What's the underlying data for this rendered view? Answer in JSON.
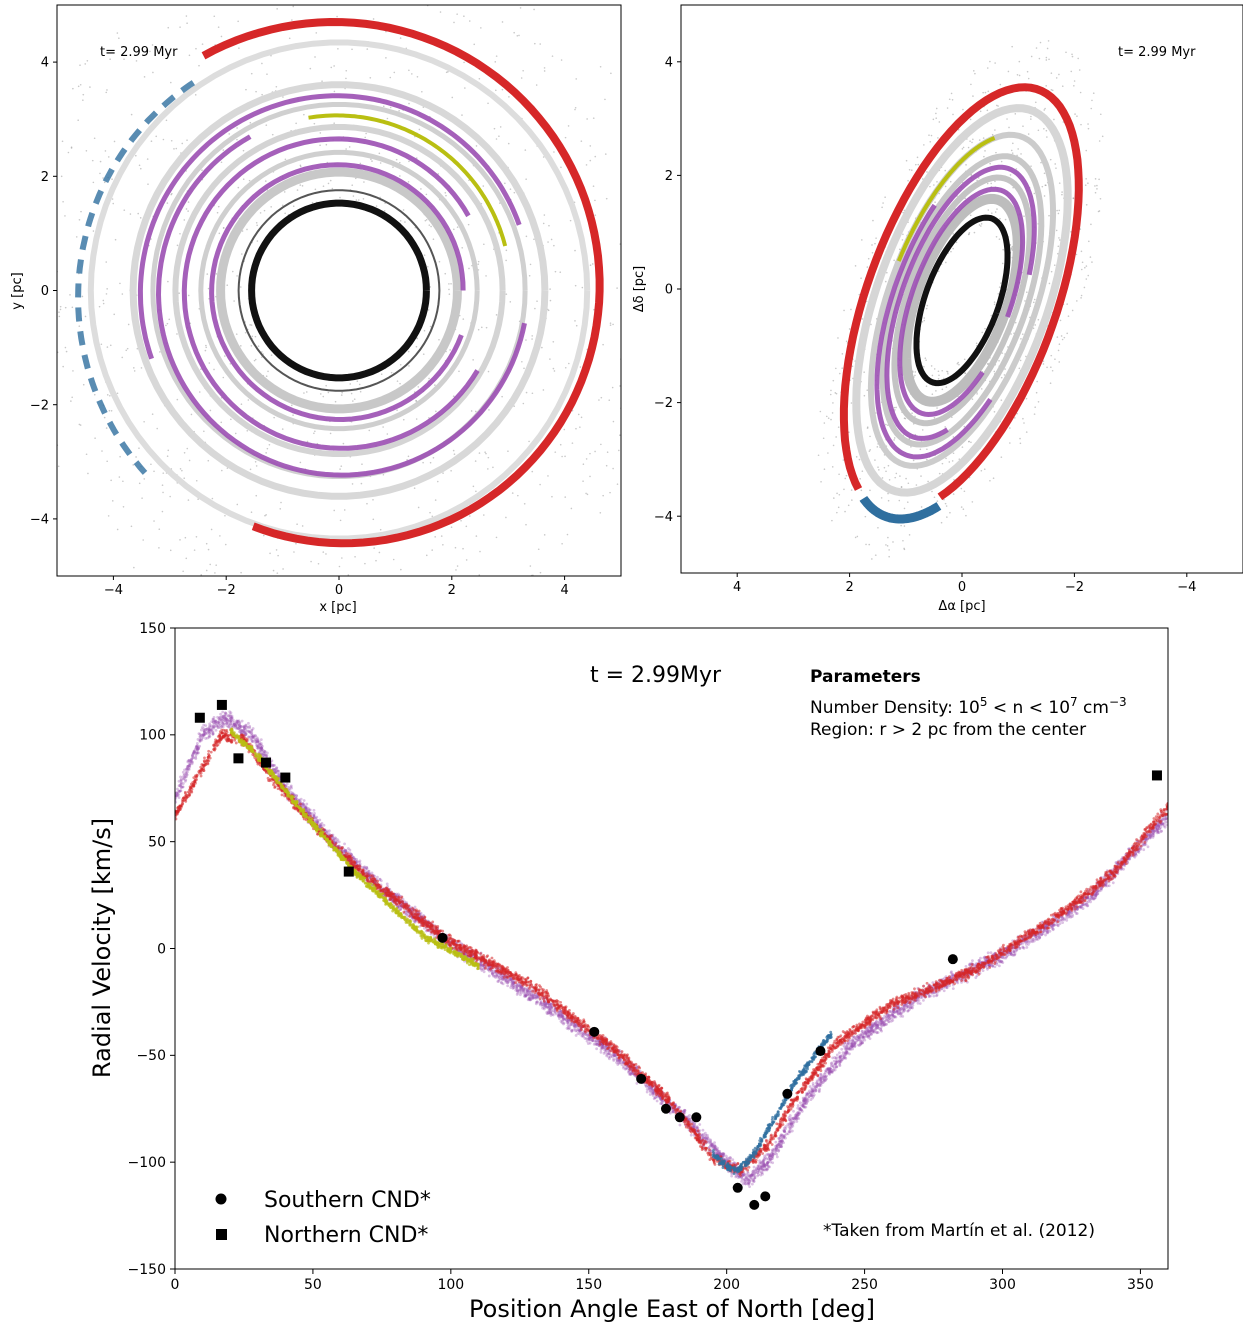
{
  "chart_data": [
    {
      "type": "scatter",
      "panel": "face-on",
      "xlabel": "x [pc]",
      "ylabel": "y [pc]",
      "xlim": [
        -5,
        5
      ],
      "ylim": [
        -5,
        5
      ],
      "xticks": [
        -4,
        -2,
        0,
        2,
        4
      ],
      "yticks": [
        -4,
        -2,
        0,
        2,
        4
      ],
      "annotation": "t= 2.99 Myr",
      "colors": {
        "red": "#d62728",
        "purple": "#9b4fb2",
        "yellow": "#b9bf12",
        "blue": "#2f6f9f",
        "black": "#111111"
      }
    },
    {
      "type": "scatter",
      "panel": "sky-projected",
      "xlabel": "Δα [pc]",
      "ylabel": "Δδ [pc]",
      "xlim": [
        5,
        -5
      ],
      "ylim": [
        -5,
        5
      ],
      "xticks": [
        4,
        2,
        0,
        -2,
        -4
      ],
      "yticks": [
        -4,
        -2,
        0,
        2,
        4
      ],
      "annotation": "t= 2.99 Myr"
    },
    {
      "type": "scatter",
      "panel": "position-velocity",
      "xlabel": "Position Angle East of North [deg]",
      "ylabel": "Radial Velocity [km/s]",
      "xlim": [
        0,
        360
      ],
      "ylim": [
        -150,
        150
      ],
      "xticks": [
        0,
        50,
        100,
        150,
        200,
        250,
        300,
        350
      ],
      "yticks": [
        -150,
        -100,
        -50,
        0,
        50,
        100,
        150
      ],
      "time_label": "t = 2.99Myr",
      "parameters_title": "Parameters",
      "param_density_prefix": "Number Density: 10",
      "param_density_exp1": "5",
      "param_density_mid": " < n < 10",
      "param_density_exp2": "7",
      "param_density_unit": " cm",
      "param_density_exp3": "−3",
      "param_region": "Region: r > 2 pc from the center",
      "footnote": "*Taken from Martín et al. (2012)",
      "series": [
        {
          "name": "Southern CND*",
          "marker": "circle",
          "x": [
            97,
            152,
            169,
            178,
            183,
            189,
            204,
            210,
            214,
            222,
            234,
            282
          ],
          "y": [
            5,
            -39,
            -61,
            -75,
            -79,
            -79,
            -112,
            -120,
            -116,
            -68,
            -48,
            -5
          ]
        },
        {
          "name": "Northern CND*",
          "marker": "square",
          "x": [
            9,
            17,
            23,
            33,
            40,
            63,
            356
          ],
          "y": [
            108,
            114,
            89,
            87,
            80,
            36,
            81
          ]
        }
      ],
      "model_tracks": [
        {
          "color": "red",
          "x": [
            0,
            10,
            17,
            25,
            35,
            50,
            70,
            100,
            130,
            160,
            180,
            195,
            205,
            215,
            225,
            240,
            260,
            290,
            320,
            340,
            360
          ],
          "y": [
            62,
            85,
            100,
            98,
            80,
            58,
            33,
            3,
            -18,
            -48,
            -72,
            -98,
            -104,
            -92,
            -70,
            -44,
            -26,
            -10,
            15,
            35,
            66
          ]
        },
        {
          "color": "purple",
          "x": [
            0,
            10,
            18,
            28,
            40,
            55,
            75,
            100,
            130,
            160,
            185,
            200,
            208,
            216,
            228,
            245,
            270,
            300,
            330,
            360
          ],
          "y": [
            70,
            100,
            108,
            100,
            75,
            53,
            28,
            2,
            -22,
            -50,
            -80,
            -100,
            -108,
            -98,
            -72,
            -45,
            -22,
            -3,
            22,
            62
          ]
        },
        {
          "color": "blue",
          "x": [
            195,
            200,
            204,
            210,
            218,
            225,
            232,
            238
          ],
          "y": [
            -96,
            -102,
            -104,
            -96,
            -78,
            -62,
            -50,
            -40
          ]
        },
        {
          "color": "yellow",
          "x": [
            20,
            30,
            45,
            65,
            90,
            110
          ],
          "y": [
            102,
            90,
            66,
            36,
            6,
            -8
          ]
        }
      ]
    }
  ]
}
